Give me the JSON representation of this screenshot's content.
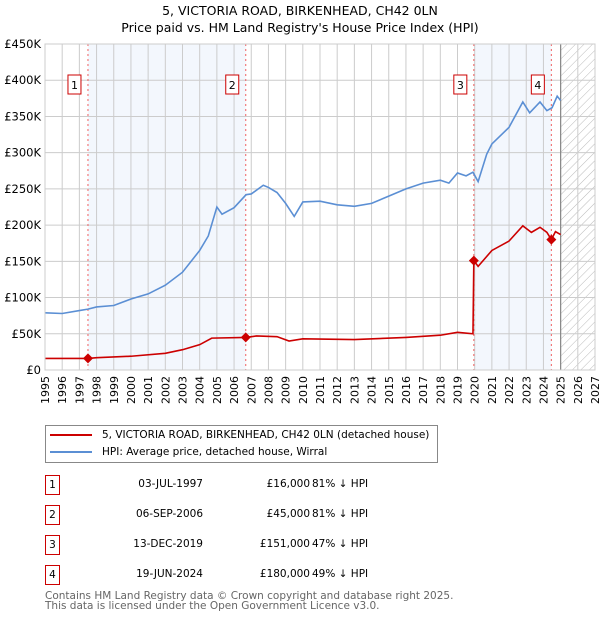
{
  "title_line1": "5, VICTORIA ROAD, BIRKENHEAD, CH42 0LN",
  "title_line2": "Price paid vs. HM Land Registry's House Price Index (HPI)",
  "chart_data": {
    "type": "line",
    "xlim": [
      1995,
      2027
    ],
    "ylim": [
      0,
      450000
    ],
    "yticks": [
      0,
      50000,
      100000,
      150000,
      200000,
      250000,
      300000,
      350000,
      400000,
      450000
    ],
    "ytick_labels": [
      "£0",
      "£50K",
      "£100K",
      "£150K",
      "£200K",
      "£250K",
      "£300K",
      "£350K",
      "£400K",
      "£450K"
    ],
    "xticks": [
      1995,
      1996,
      1997,
      1998,
      1999,
      2000,
      2001,
      2002,
      2003,
      2004,
      2005,
      2006,
      2007,
      2008,
      2009,
      2010,
      2011,
      2012,
      2013,
      2014,
      2015,
      2016,
      2017,
      2018,
      2019,
      2020,
      2021,
      2022,
      2023,
      2024,
      2025,
      2026,
      2027
    ],
    "grid": true,
    "forecast_start": 2025.0,
    "shaded_periods": [
      [
        1997.5,
        2006.68
      ],
      [
        2019.95,
        2024.46
      ]
    ],
    "series": [
      {
        "name": "5, VICTORIA ROAD, BIRKENHEAD, CH42 0LN (detached house)",
        "color": "#cc0000",
        "x": [
          1995,
          1997.5,
          1998,
          2000,
          2002,
          2003,
          2004,
          2004.7,
          2006.68,
          2007.3,
          2008.5,
          2009.2,
          2010,
          2013,
          2016,
          2018,
          2019,
          2019.9,
          2019.95,
          2020.2,
          2021,
          2022,
          2022.8,
          2023.3,
          2023.8,
          2024.2,
          2024.46,
          2024.7,
          2025
        ],
        "values": [
          16000,
          16000,
          17000,
          19000,
          23000,
          28000,
          35000,
          44000,
          45000,
          47000,
          46000,
          40000,
          43000,
          42000,
          45000,
          48000,
          52000,
          50000,
          151000,
          143000,
          165000,
          178000,
          199000,
          190000,
          197000,
          190000,
          180000,
          191000,
          187000
        ]
      },
      {
        "name": "HPI: Average price, detached house, Wirral",
        "color": "#5b8fd4",
        "x": [
          1995,
          1996,
          1997,
          1997.5,
          1998,
          1999,
          2000,
          2001,
          2002,
          2003,
          2004,
          2004.5,
          2005,
          2005.3,
          2006,
          2006.7,
          2007,
          2007.7,
          2008,
          2008.5,
          2009,
          2009.5,
          2010,
          2011,
          2012,
          2013,
          2014,
          2015,
          2016,
          2017,
          2018,
          2018.5,
          2019,
          2019.5,
          2019.9,
          2020.2,
          2020.7,
          2021,
          2022,
          2022.8,
          2023.2,
          2023.8,
          2024.2,
          2024.5,
          2024.8,
          2025
        ],
        "values": [
          79000,
          78000,
          82000,
          84000,
          87000,
          89000,
          98000,
          105000,
          117000,
          135000,
          165000,
          185000,
          225000,
          215000,
          224000,
          242000,
          243000,
          255000,
          252000,
          245000,
          230000,
          212000,
          232000,
          233000,
          228000,
          226000,
          230000,
          240000,
          250000,
          258000,
          262000,
          258000,
          272000,
          268000,
          273000,
          260000,
          298000,
          312000,
          335000,
          370000,
          355000,
          370000,
          358000,
          362000,
          378000,
          372000
        ]
      }
    ],
    "sales": [
      {
        "n": "1",
        "x": 1997.5,
        "y": 16000,
        "date": "03-JUL-1997",
        "price": "£16,000",
        "hpi": "81% ↓ HPI"
      },
      {
        "n": "2",
        "x": 2006.68,
        "y": 45000,
        "date": "06-SEP-2006",
        "price": "£45,000",
        "hpi": "81% ↓ HPI"
      },
      {
        "n": "3",
        "x": 2019.95,
        "y": 151000,
        "date": "13-DEC-2019",
        "price": "£151,000",
        "hpi": "47% ↓ HPI"
      },
      {
        "n": "4",
        "x": 2024.46,
        "y": 180000,
        "date": "19-JUN-2024",
        "price": "£180,000",
        "hpi": "49% ↓ HPI"
      }
    ]
  },
  "legend": [
    "5, VICTORIA ROAD, BIRKENHEAD, CH42 0LN (detached house)",
    "HPI: Average price, detached house, Wirral"
  ],
  "footer1": "Contains HM Land Registry data © Crown copyright and database right 2025.",
  "footer2": "This data is licensed under the Open Government Licence v3.0."
}
